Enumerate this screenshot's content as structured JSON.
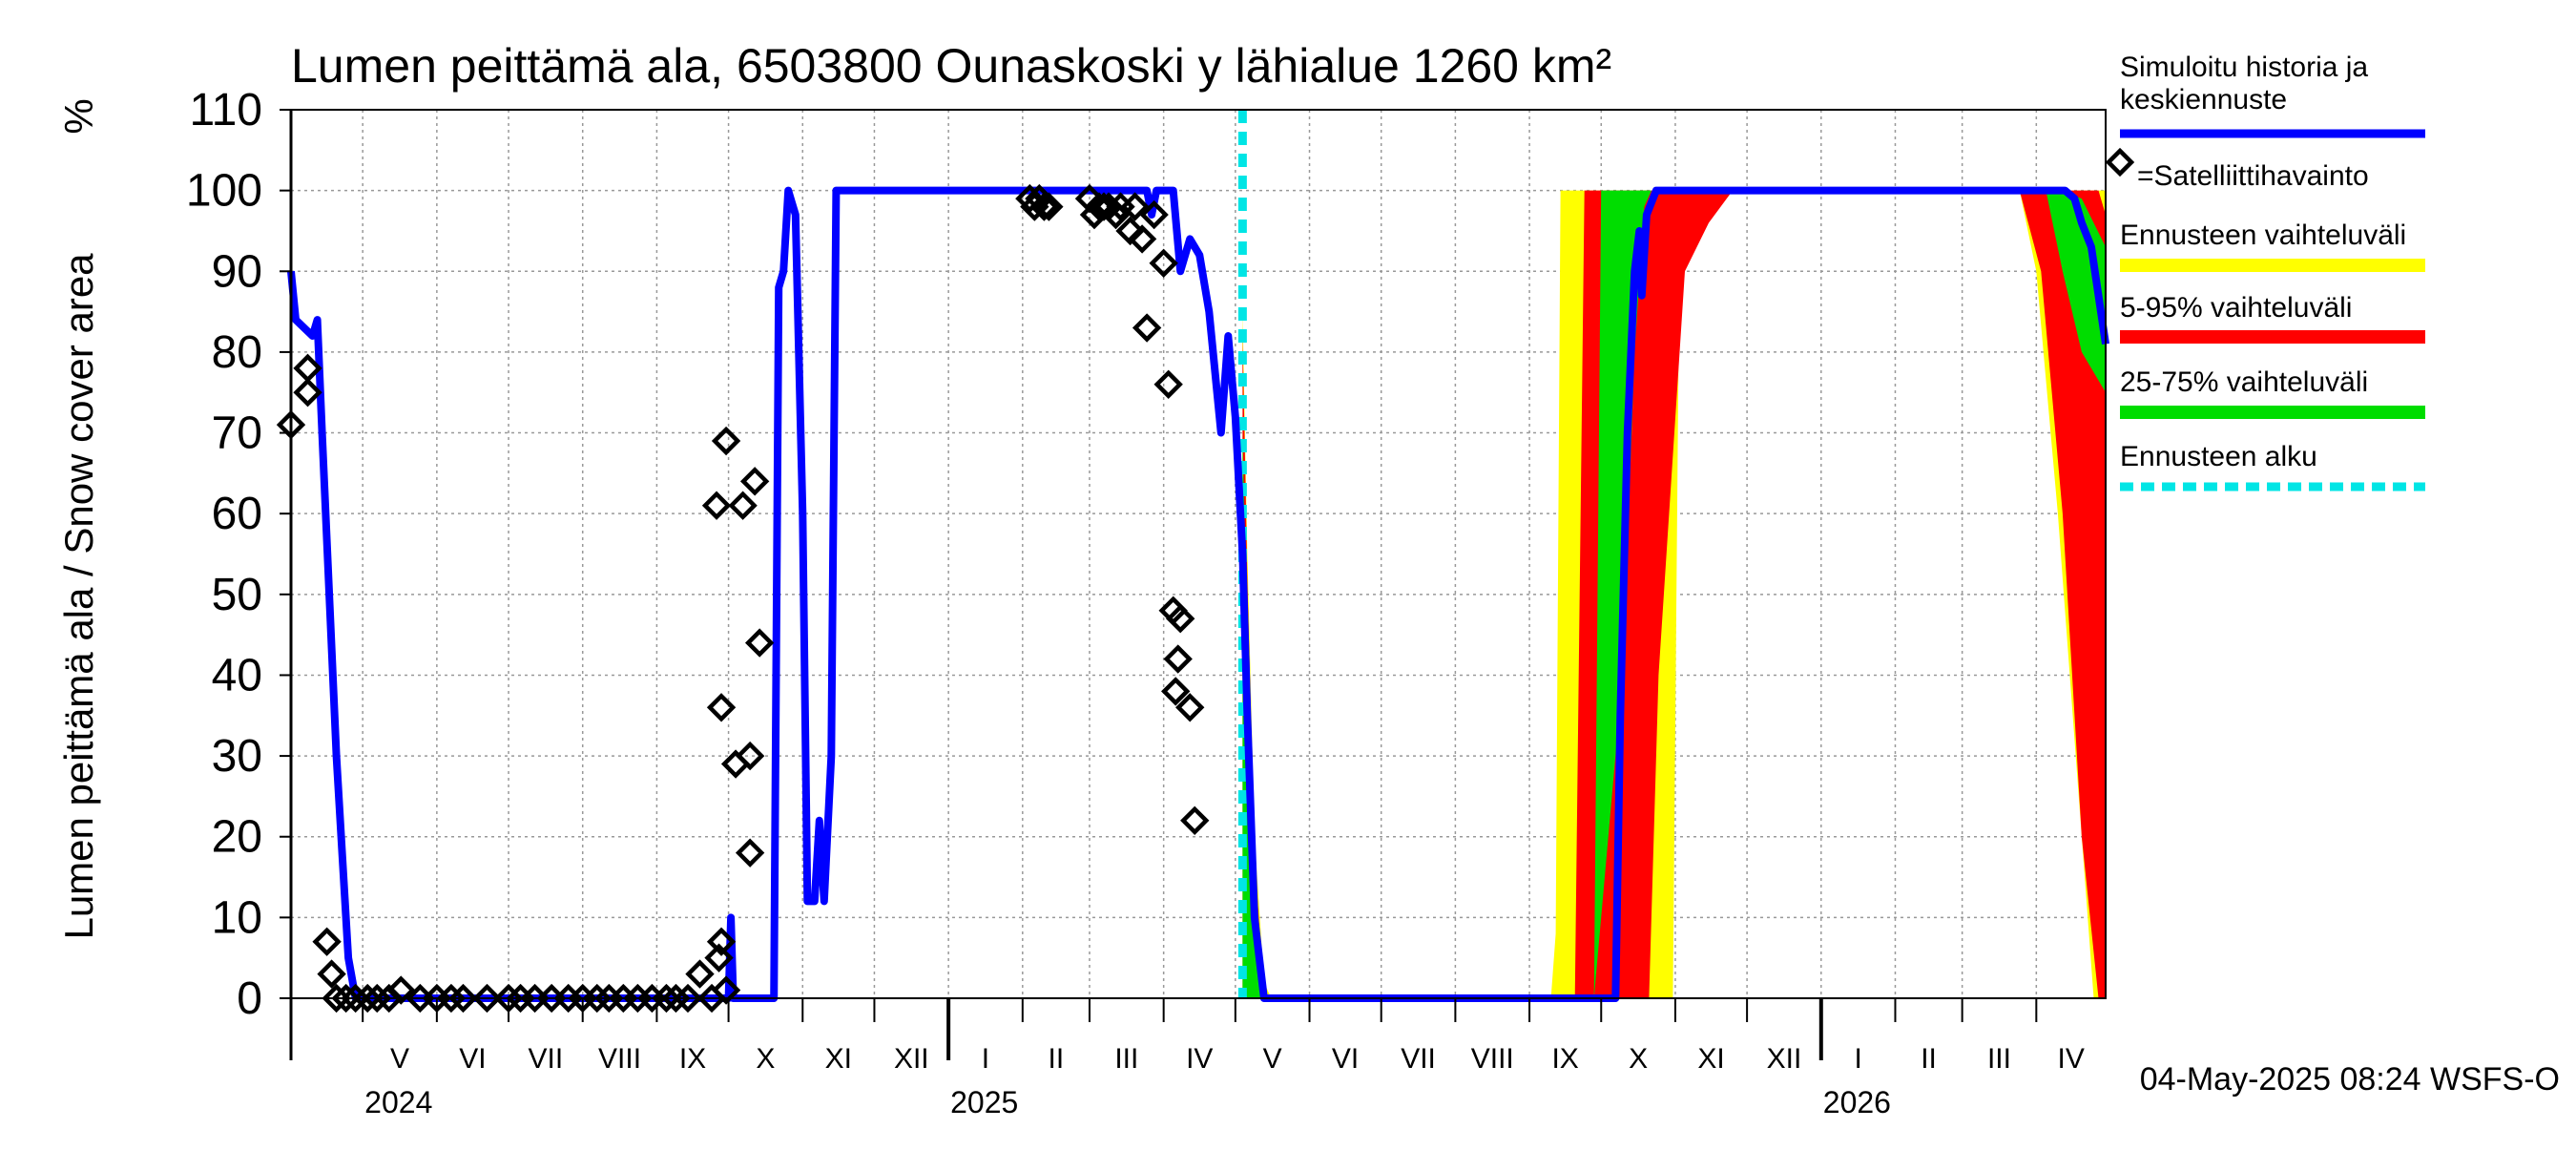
{
  "chart_data": {
    "type": "area",
    "title": "Lumen peittämä ala, 6503800 Ounaskoski y lähialue 1260 km²",
    "ylabel": "Lumen peittämä ala / Snow cover area",
    "yunit": "%",
    "ylim": [
      0,
      110
    ],
    "yticks": [
      0,
      10,
      20,
      30,
      40,
      50,
      60,
      70,
      80,
      90,
      100,
      110
    ],
    "xlim": [
      "2024-04-01",
      "2026-04-30"
    ],
    "grid": true,
    "months": [
      {
        "label": "V",
        "start": "2024-05-01"
      },
      {
        "label": "VI",
        "start": "2024-06-01"
      },
      {
        "label": "VII",
        "start": "2024-07-01"
      },
      {
        "label": "VIII",
        "start": "2024-08-01"
      },
      {
        "label": "IX",
        "start": "2024-09-01"
      },
      {
        "label": "X",
        "start": "2024-10-01"
      },
      {
        "label": "XI",
        "start": "2024-11-01"
      },
      {
        "label": "XII",
        "start": "2024-12-01"
      },
      {
        "label": "I",
        "start": "2025-01-01"
      },
      {
        "label": "II",
        "start": "2025-02-01"
      },
      {
        "label": "III",
        "start": "2025-03-01"
      },
      {
        "label": "IV",
        "start": "2025-04-01"
      },
      {
        "label": "V",
        "start": "2025-05-01"
      },
      {
        "label": "VI",
        "start": "2025-06-01"
      },
      {
        "label": "VII",
        "start": "2025-07-01"
      },
      {
        "label": "VIII",
        "start": "2025-08-01"
      },
      {
        "label": "IX",
        "start": "2025-09-01"
      },
      {
        "label": "X",
        "start": "2025-10-01"
      },
      {
        "label": "XI",
        "start": "2025-11-01"
      },
      {
        "label": "XII",
        "start": "2025-12-01"
      },
      {
        "label": "I",
        "start": "2026-01-01"
      },
      {
        "label": "II",
        "start": "2026-02-01"
      },
      {
        "label": "III",
        "start": "2026-03-01"
      },
      {
        "label": "IV",
        "start": "2026-04-01"
      }
    ],
    "years": [
      {
        "label": "2024",
        "at": "2024-05-01"
      },
      {
        "label": "2025",
        "at": "2025-01-01"
      },
      {
        "label": "2026",
        "at": "2026-01-01"
      }
    ],
    "forecast_start": "2025-05-04",
    "legend_placement": "right",
    "legend": [
      {
        "label": "Simuloitu historia ja keskiennuste",
        "color": "#0000ff",
        "style": "line"
      },
      {
        "label": "=Satelliittihavainto",
        "color": "#000000",
        "style": "diamond"
      },
      {
        "label": "Ennusteen vaihteluväli",
        "color": "#ffff00",
        "style": "band"
      },
      {
        "label": "5-95% vaihteluväli",
        "color": "#ff0000",
        "style": "band"
      },
      {
        "label": "25-75% vaihteluväli",
        "color": "#00dd00",
        "style": "band"
      },
      {
        "label": "Ennusteen alku",
        "color": "#00e5e5",
        "style": "dashed"
      }
    ],
    "series": [
      {
        "name": "Simuloitu historia ja keskiennuste",
        "color": "#0000ff",
        "points": [
          [
            "2024-04-01",
            90
          ],
          [
            "2024-04-03",
            84
          ],
          [
            "2024-04-10",
            82
          ],
          [
            "2024-04-12",
            84
          ],
          [
            "2024-04-14",
            70
          ],
          [
            "2024-04-20",
            30
          ],
          [
            "2024-04-25",
            5
          ],
          [
            "2024-04-28",
            0
          ],
          [
            "2024-10-01",
            0
          ],
          [
            "2024-10-02",
            10
          ],
          [
            "2024-10-03",
            0
          ],
          [
            "2024-10-20",
            0
          ],
          [
            "2024-10-22",
            88
          ],
          [
            "2024-10-24",
            90
          ],
          [
            "2024-10-26",
            100
          ],
          [
            "2024-10-29",
            97
          ],
          [
            "2024-11-01",
            60
          ],
          [
            "2024-11-03",
            12
          ],
          [
            "2024-11-06",
            12
          ],
          [
            "2024-11-08",
            22
          ],
          [
            "2024-11-10",
            12
          ],
          [
            "2024-11-13",
            30
          ],
          [
            "2024-11-15",
            100
          ],
          [
            "2025-03-25",
            100
          ],
          [
            "2025-03-27",
            97
          ],
          [
            "2025-03-29",
            100
          ],
          [
            "2025-04-05",
            100
          ],
          [
            "2025-04-08",
            90
          ],
          [
            "2025-04-12",
            94
          ],
          [
            "2025-04-16",
            92
          ],
          [
            "2025-04-20",
            85
          ],
          [
            "2025-04-25",
            70
          ],
          [
            "2025-04-28",
            82
          ],
          [
            "2025-05-01",
            72
          ],
          [
            "2025-05-04",
            55
          ],
          [
            "2025-05-06",
            35
          ],
          [
            "2025-05-09",
            10
          ],
          [
            "2025-05-13",
            0
          ],
          [
            "2025-10-07",
            0
          ],
          [
            "2025-10-09",
            35
          ],
          [
            "2025-10-12",
            70
          ],
          [
            "2025-10-15",
            90
          ],
          [
            "2025-10-17",
            95
          ],
          [
            "2025-10-18",
            87
          ],
          [
            "2025-10-20",
            97
          ],
          [
            "2025-10-24",
            100
          ],
          [
            "2026-04-13",
            100
          ],
          [
            "2026-04-17",
            99
          ],
          [
            "2026-04-20",
            96
          ],
          [
            "2026-04-24",
            93
          ],
          [
            "2026-04-30",
            81
          ]
        ]
      },
      {
        "name": "Ennusteen vaihteluväli",
        "color": "#ffff00",
        "points": [
          [
            "2025-05-04",
            0,
            85
          ],
          [
            "2025-05-06",
            0,
            55
          ],
          [
            "2025-05-09",
            0,
            20
          ],
          [
            "2025-05-13",
            0,
            2
          ],
          [
            "2025-05-16",
            0,
            0
          ],
          [
            "2025-09-10",
            0,
            0
          ],
          [
            "2025-09-12",
            0,
            8
          ],
          [
            "2025-09-14",
            0,
            100
          ],
          [
            "2025-10-31",
            0,
            100
          ],
          [
            "2025-11-03",
            100,
            100
          ],
          [
            "2026-03-25",
            100,
            100
          ],
          [
            "2026-04-01",
            90,
            100
          ],
          [
            "2026-04-10",
            60,
            100
          ],
          [
            "2026-04-20",
            20,
            100
          ],
          [
            "2026-04-25",
            0,
            100
          ],
          [
            "2026-04-30",
            0,
            100
          ]
        ]
      },
      {
        "name": "5-95% vaihteluväli",
        "color": "#ff0000",
        "points": [
          [
            "2025-05-04",
            0,
            82
          ],
          [
            "2025-05-06",
            0,
            52
          ],
          [
            "2025-05-09",
            0,
            18
          ],
          [
            "2025-05-13",
            0,
            0
          ],
          [
            "2025-09-20",
            0,
            0
          ],
          [
            "2025-09-24",
            0,
            100
          ],
          [
            "2025-10-21",
            0,
            100
          ],
          [
            "2025-10-25",
            40,
            100
          ],
          [
            "2025-11-05",
            90,
            100
          ],
          [
            "2025-11-15",
            96,
            100
          ],
          [
            "2025-11-25",
            100,
            100
          ],
          [
            "2026-03-25",
            100,
            100
          ],
          [
            "2026-04-03",
            90,
            100
          ],
          [
            "2026-04-12",
            60,
            100
          ],
          [
            "2026-04-20",
            20,
            100
          ],
          [
            "2026-04-27",
            0,
            100
          ],
          [
            "2026-04-30",
            0,
            97
          ]
        ]
      },
      {
        "name": "25-75% vaihteluväli",
        "color": "#00dd00",
        "points": [
          [
            "2025-05-04",
            0,
            70
          ],
          [
            "2025-05-06",
            0,
            45
          ],
          [
            "2025-05-10",
            0,
            12
          ],
          [
            "2025-05-13",
            0,
            0
          ],
          [
            "2025-09-28",
            0,
            0
          ],
          [
            "2025-10-01",
            10,
            100
          ],
          [
            "2025-10-10",
            40,
            100
          ],
          [
            "2025-10-15",
            80,
            100
          ],
          [
            "2025-10-19",
            98,
            100
          ],
          [
            "2025-10-22",
            100,
            100
          ],
          [
            "2026-04-05",
            100,
            100
          ],
          [
            "2026-04-12",
            90,
            100
          ],
          [
            "2026-04-20",
            80,
            99
          ],
          [
            "2026-04-30",
            75,
            93
          ]
        ]
      },
      {
        "name": "Satelliittihavainto",
        "color": "#000000",
        "points": [
          [
            "2024-04-01",
            71
          ],
          [
            "2024-04-08",
            78
          ],
          [
            "2024-04-08",
            75
          ],
          [
            "2024-04-16",
            7
          ],
          [
            "2024-04-18",
            3
          ],
          [
            "2024-04-20",
            0
          ],
          [
            "2024-04-24",
            0
          ],
          [
            "2024-04-28",
            0
          ],
          [
            "2024-05-03",
            0
          ],
          [
            "2024-05-07",
            0
          ],
          [
            "2024-05-12",
            0
          ],
          [
            "2024-05-17",
            1
          ],
          [
            "2024-05-25",
            0
          ],
          [
            "2024-06-01",
            0
          ],
          [
            "2024-06-07",
            0
          ],
          [
            "2024-06-12",
            0
          ],
          [
            "2024-06-22",
            0
          ],
          [
            "2024-07-01",
            0
          ],
          [
            "2024-07-06",
            0
          ],
          [
            "2024-07-12",
            0
          ],
          [
            "2024-07-19",
            0
          ],
          [
            "2024-07-26",
            0
          ],
          [
            "2024-08-01",
            0
          ],
          [
            "2024-08-07",
            0
          ],
          [
            "2024-08-12",
            0
          ],
          [
            "2024-08-18",
            0
          ],
          [
            "2024-08-24",
            0
          ],
          [
            "2024-08-30",
            0
          ],
          [
            "2024-09-05",
            0
          ],
          [
            "2024-09-09",
            0
          ],
          [
            "2024-09-14",
            0
          ],
          [
            "2024-09-19",
            3
          ],
          [
            "2024-09-24",
            0
          ],
          [
            "2024-09-27",
            5
          ],
          [
            "2024-09-28",
            7
          ],
          [
            "2024-09-30",
            1
          ],
          [
            "2024-09-26",
            61
          ],
          [
            "2024-09-30",
            69
          ],
          [
            "2024-09-28",
            36
          ],
          [
            "2024-10-04",
            29
          ],
          [
            "2024-10-07",
            61
          ],
          [
            "2024-10-10",
            30
          ],
          [
            "2024-10-10",
            18
          ],
          [
            "2024-10-12",
            64
          ],
          [
            "2024-10-14",
            44
          ],
          [
            "2025-02-04",
            99
          ],
          [
            "2025-02-06",
            98
          ],
          [
            "2025-02-08",
            99
          ],
          [
            "2025-02-10",
            98
          ],
          [
            "2025-02-12",
            98
          ],
          [
            "2025-03-01",
            99
          ],
          [
            "2025-03-03",
            97
          ],
          [
            "2025-03-05",
            98
          ],
          [
            "2025-03-07",
            98
          ],
          [
            "2025-03-09",
            98
          ],
          [
            "2025-03-12",
            97
          ],
          [
            "2025-03-14",
            98
          ],
          [
            "2025-03-18",
            95
          ],
          [
            "2025-03-20",
            98
          ],
          [
            "2025-03-23",
            94
          ],
          [
            "2025-03-25",
            83
          ],
          [
            "2025-03-28",
            97
          ],
          [
            "2025-04-01",
            91
          ],
          [
            "2025-04-03",
            76
          ],
          [
            "2025-04-05",
            48
          ],
          [
            "2025-04-08",
            47
          ],
          [
            "2025-04-06",
            38
          ],
          [
            "2025-04-07",
            42
          ],
          [
            "2025-04-12",
            36
          ],
          [
            "2025-04-14",
            22
          ]
        ]
      }
    ]
  },
  "footer": {
    "timestamp": "04-May-2025 08:24 WSFS-O"
  }
}
